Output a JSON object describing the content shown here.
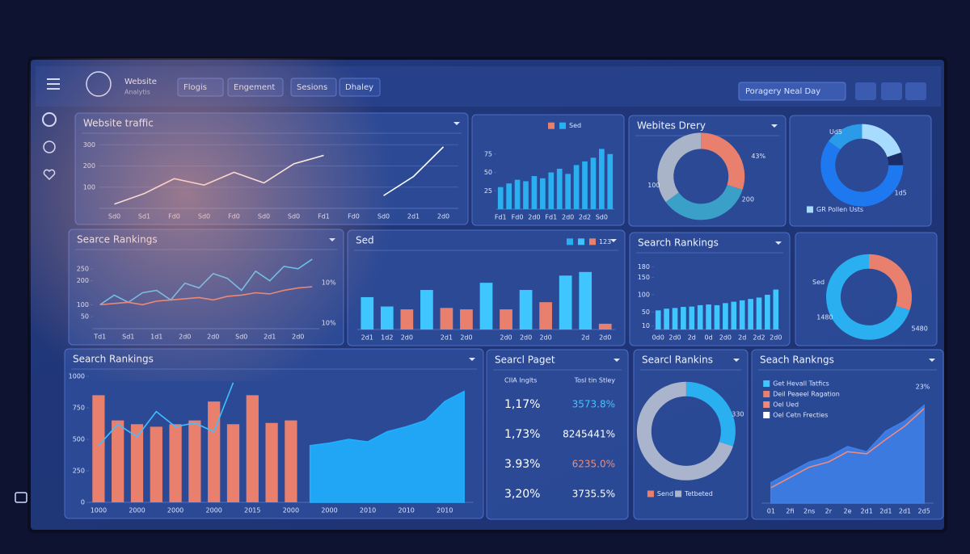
{
  "header": {
    "brand": "Website",
    "brand_sub": "Analytis",
    "tabs": [
      "Flogis",
      "Engement",
      "Sesions",
      "Dhaley"
    ],
    "dropdown": "Poragery Neal Day"
  },
  "panels": [
    {
      "title": "Website traffic",
      "chart": {
        "type": "xy",
        "grid": true,
        "ylim": [
          0,
          320
        ],
        "yticks": [
          100,
          200,
          300
        ],
        "categories": [
          "Sd0",
          "Sd1",
          "Fd0",
          "Sd0",
          "Fd0",
          "Sd0",
          "Sd0",
          "Fd1",
          "Fd0",
          "Sd0",
          "2d1",
          "2d0"
        ],
        "series": [
          {
            "kind": "line",
            "color": "#ffffff",
            "values": [
              20,
              70,
              140,
              110,
              170,
              120,
              210,
              250,
              null,
              60,
              150,
              290
            ]
          }
        ]
      }
    },
    {
      "title": null,
      "chart": {
        "type": "xy",
        "grid": false,
        "ylim": [
          0,
          100
        ],
        "yticks": [
          25,
          50,
          75
        ],
        "categories": [
          "Fd1",
          null,
          "Fd0",
          null,
          "2d0",
          null,
          "Fd1",
          null,
          "2d0",
          null,
          "2d2",
          null,
          "Sd0",
          null
        ],
        "series": [
          {
            "kind": "bar",
            "color": "#2ab0f0",
            "values": [
              30,
              35,
              40,
              38,
              45,
              42,
              50,
              55,
              48,
              60,
              65,
              70,
              82,
              75
            ]
          }
        ],
        "legend": [
          {
            "color": "#e9806e"
          },
          {
            "color": "#2ab0f0",
            "label": "Sed"
          }
        ]
      }
    },
    {
      "title": "Webites Drery",
      "chart": {
        "type": "donut",
        "values": [
          30,
          35,
          35
        ],
        "colors": [
          "#e9806e",
          "#3aa0c8",
          "#a9b4c8"
        ],
        "annotations": [
          "43%",
          "100",
          "200"
        ]
      }
    },
    {
      "title": null,
      "chart": {
        "type": "donut",
        "values": [
          20,
          5,
          60,
          15
        ],
        "colors": [
          "#a8dcff",
          "#1c2c66",
          "#1e78f0",
          "#2a9be8"
        ],
        "annotations": [
          "Ud5",
          "1d5"
        ],
        "legend": [
          {
            "color": "#a8dcff",
            "label": "GR Pollen Usts"
          }
        ]
      }
    },
    {
      "title": "Searce Rankings",
      "chart": {
        "type": "xy",
        "grid": false,
        "ylim": [
          0,
          300
        ],
        "yticks": [
          50,
          100,
          200,
          250
        ],
        "categories": [
          "Td1",
          null,
          "Sd1",
          null,
          "1d1",
          null,
          "2d0",
          null,
          "2d0",
          null,
          "Sd0",
          null,
          "2d1",
          null,
          "2d0",
          null
        ],
        "series": [
          {
            "kind": "line",
            "color": "#4cc6ff",
            "values": [
              100,
              140,
              110,
              150,
              160,
              120,
              190,
              170,
              230,
              210,
              160,
              240,
              200,
              260,
              250,
              290
            ]
          },
          {
            "kind": "line",
            "color": "#e9806e",
            "values": [
              100,
              105,
              110,
              100,
              115,
              120,
              125,
              130,
              120,
              135,
              140,
              150,
              145,
              160,
              170,
              175
            ]
          }
        ],
        "annotations": [
          "10%",
          "10%"
        ]
      }
    },
    {
      "title": "Sed",
      "chart": {
        "type": "xy",
        "grid": false,
        "ylim": [
          0,
          100
        ],
        "categories": [
          "2d1",
          "1d2",
          "2d0",
          null,
          "2d1",
          "2d0",
          null,
          "2d0",
          "2d0",
          "2d0",
          null,
          "2d",
          "2d0"
        ],
        "series": [
          {
            "kind": "bar",
            "color": "#2ab0f0",
            "colors": [
              "#3fc6ff",
              "#3fc6ff",
              "#e9806e",
              "#3fc6ff",
              "#e9806e",
              "#e9806e",
              "#3fc6ff",
              "#e9806e",
              "#3fc6ff",
              "#e9806e",
              "#3fc6ff",
              "#3fc6ff",
              "#e9806e"
            ],
            "values": [
              45,
              32,
              28,
              55,
              30,
              28,
              65,
              28,
              55,
              38,
              75,
              80,
              8
            ]
          }
        ],
        "legend": [
          {
            "color": "#2ab0f0"
          },
          {
            "color": "#3fc0ff"
          },
          {
            "color": "#e9806e",
            "label": "123"
          }
        ]
      }
    },
    {
      "title": "Search Rankings",
      "chart": {
        "type": "xy",
        "grid": false,
        "ylim": [
          0,
          200
        ],
        "yticks": [
          10,
          50,
          100,
          150,
          180
        ],
        "categories": [
          "0d0",
          null,
          "2d0",
          null,
          "2d",
          null,
          "0d",
          null,
          "2d0",
          null,
          "2d",
          null,
          "2d2",
          null,
          "2d0"
        ],
        "series": [
          {
            "kind": "bar",
            "color": "#3fc6ff",
            "values": [
              55,
              60,
              62,
              65,
              66,
              70,
              72,
              70,
              76,
              80,
              84,
              88,
              92,
              100,
              115
            ]
          }
        ]
      }
    },
    {
      "title": null,
      "chart": {
        "type": "donut",
        "values": [
          30,
          70
        ],
        "colors": [
          "#e9806e",
          "#2ab0f0"
        ],
        "annotations": [
          "Sed",
          "1480",
          "5480"
        ]
      }
    },
    {
      "title": "Search Rankings",
      "chart": {
        "type": "xy",
        "grid": false,
        "ylim": [
          0,
          1000
        ],
        "yticks": [
          0,
          250,
          500,
          750,
          1000
        ],
        "categories": [
          "1000",
          null,
          "2000",
          null,
          "2000",
          null,
          "2000",
          null,
          "2015",
          null,
          "2000",
          null,
          "2000",
          null,
          "2010",
          null,
          "2010",
          null,
          "2010",
          null
        ],
        "series": [
          {
            "kind": "bar",
            "color": "#e9806e",
            "values": [
              850,
              650,
              620,
              600,
              620,
              650,
              800,
              620,
              850,
              630,
              650,
              null,
              null,
              null,
              null,
              null,
              null,
              null,
              null,
              null
            ]
          },
          {
            "kind": "line",
            "color": "#3fbfff",
            "values": [
              450,
              620,
              520,
              720,
              600,
              630,
              560,
              950,
              null,
              null,
              null,
              null,
              null,
              null,
              null,
              null,
              null,
              null,
              null,
              null
            ]
          },
          {
            "kind": "area",
            "color": "#1fb0ff",
            "values": [
              null,
              null,
              null,
              null,
              null,
              null,
              null,
              null,
              null,
              null,
              null,
              450,
              470,
              500,
              480,
              560,
              600,
              650,
              800,
              880
            ]
          }
        ]
      }
    },
    {
      "title": "Searcl Paget",
      "chart": {
        "type": "table",
        "headers": [
          "CIIA Inglts",
          "Tosl tin Stley"
        ],
        "rows": [
          [
            "1,17%",
            "3573.8%"
          ],
          [
            "1,73%",
            "8245441%"
          ],
          [
            "3.93%",
            "6235.0%"
          ],
          [
            "3,20%",
            "3735.5%"
          ]
        ],
        "cell_colors": [
          [
            "#ffffff",
            "#3fc6ff"
          ],
          [
            "#ffffff",
            "#ffffff"
          ],
          [
            "#ffffff",
            "#f08a78"
          ],
          [
            "#ffffff",
            "#ffffff"
          ]
        ]
      }
    },
    {
      "title": "Searcl Rankins",
      "chart": {
        "type": "donut",
        "values": [
          30,
          70
        ],
        "colors": [
          "#2ab0f0",
          "#aab4cc"
        ],
        "annotations": [
          "330"
        ],
        "legend": [
          {
            "color": "#e9806e",
            "label": "Send"
          },
          {
            "color": "#aab4cc",
            "label": "Tetbeted"
          }
        ]
      }
    },
    {
      "title": "Seach Rankngs",
      "chart": {
        "type": "xy",
        "grid": false,
        "ylim": [
          0,
          110
        ],
        "categories": [
          "01",
          "2fi",
          "2ns",
          "2r",
          "2e",
          "2d1",
          "2d1",
          "2d1",
          "2d5"
        ],
        "series": [
          {
            "kind": "area",
            "color": "#3f7fe8",
            "values": [
              20,
              30,
              40,
              45,
              55,
              50,
              70,
              80,
              95
            ]
          },
          {
            "kind": "line",
            "color": "#f08a78",
            "values": [
              15,
              25,
              35,
              40,
              50,
              48,
              62,
              75,
              92
            ]
          }
        ],
        "annotations": [
          "23%"
        ],
        "legend": [
          {
            "color": "#3fc6ff",
            "label": "Get Hevall Tatfics"
          },
          {
            "color": "#e9806e",
            "label": "Deil Peaeel Ragation"
          },
          {
            "color": "#f08a78",
            "label": "Oel Ued"
          },
          {
            "color": "#ffffff",
            "label": "Oel Cetn Frecties"
          }
        ]
      }
    }
  ]
}
